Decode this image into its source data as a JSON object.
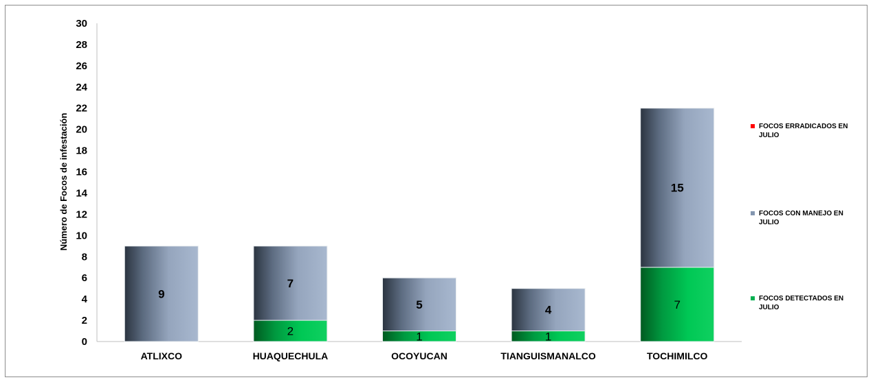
{
  "chart_data": {
    "type": "bar",
    "stacked": true,
    "title": "",
    "xlabel": "",
    "ylabel": "Número de Focos de infestación",
    "ylim": [
      0,
      30
    ],
    "yticks": [
      "0",
      "2",
      "4",
      "6",
      "8",
      "10",
      "12",
      "14",
      "16",
      "18",
      "20",
      "22",
      "24",
      "26",
      "28",
      "30"
    ],
    "categories": [
      "ATLIXCO",
      "HUAQUECHULA",
      "OCOYUCAN",
      "TIANGUISMANALCO",
      "TOCHIMILCO"
    ],
    "series": [
      {
        "name": "FOCOS DETECTADOS EN JULIO",
        "values": [
          0,
          2,
          1,
          1,
          7
        ],
        "color": "#00b050"
      },
      {
        "name": "FOCOS CON MANEJO EN JULIO",
        "values": [
          9,
          7,
          5,
          4,
          15
        ],
        "color": "#8496b0"
      },
      {
        "name": "FOCOS ERRADICADOS EN JULIO",
        "values": [
          0,
          0,
          0,
          0,
          0
        ],
        "color": "#ff0000"
      }
    ],
    "legend": {
      "position": "right",
      "items": [
        {
          "lines": [
            "FOCOS ERRADICADOS EN",
            "JULIO"
          ],
          "color": "#ff0000"
        },
        {
          "lines": [
            "FOCOS CON MANEJO EN",
            "JULIO"
          ],
          "color": "#8496b0"
        },
        {
          "lines": [
            "FOCOS DETECTADOS EN",
            "JULIO"
          ],
          "color": "#00b050"
        }
      ]
    },
    "data_labels": {
      "series_0": [
        "",
        "2",
        "1",
        "1",
        "7"
      ],
      "series_1": [
        "9",
        "7",
        "5",
        "4",
        "15"
      ]
    },
    "grid": false
  }
}
